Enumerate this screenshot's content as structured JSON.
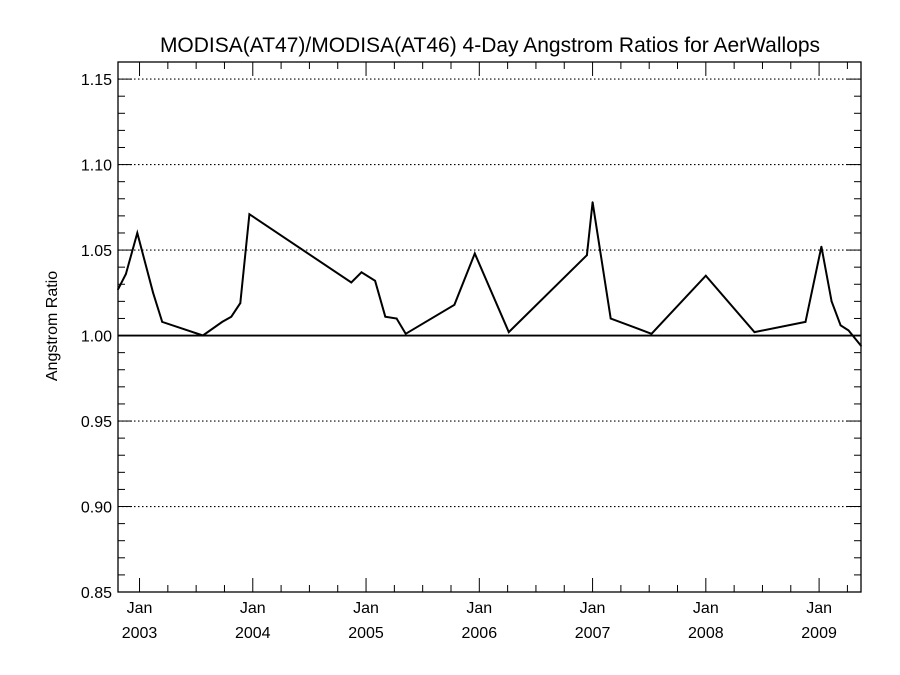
{
  "chart_data": {
    "type": "line",
    "title": "MODISA(AT47)/MODISA(AT46) 4-Day Angstrom Ratios for AerWallops",
    "xlabel": "",
    "ylabel": "Angstrom Ratio",
    "ylim": [
      0.85,
      1.16
    ],
    "yticks": [
      "0.85",
      "0.90",
      "0.95",
      "1.00",
      "1.05",
      "1.10",
      "1.15"
    ],
    "xlim": [
      2002.81,
      2009.37
    ],
    "xticks": [
      {
        "month": "Jan",
        "year": "2003",
        "x": 2003.0
      },
      {
        "month": "Jan",
        "year": "2004",
        "x": 2004.0
      },
      {
        "month": "Jan",
        "year": "2005",
        "x": 2005.0
      },
      {
        "month": "Jan",
        "year": "2006",
        "x": 2006.0
      },
      {
        "month": "Jan",
        "year": "2007",
        "x": 2007.0
      },
      {
        "month": "Jan",
        "year": "2008",
        "x": 2008.0
      },
      {
        "month": "Jan",
        "year": "2009",
        "x": 2009.0
      }
    ],
    "grid": "horizontal dotted",
    "reference_line": 1.0,
    "series": [
      {
        "values": [
          {
            "x": 2002.81,
            "y": 1.027
          },
          {
            "x": 2002.88,
            "y": 1.036
          },
          {
            "x": 2002.98,
            "y": 1.06
          },
          {
            "x": 2003.12,
            "y": 1.025
          },
          {
            "x": 2003.2,
            "y": 1.008
          },
          {
            "x": 2003.56,
            "y": 1.0
          },
          {
            "x": 2003.73,
            "y": 1.008
          },
          {
            "x": 2003.81,
            "y": 1.011
          },
          {
            "x": 2003.89,
            "y": 1.019
          },
          {
            "x": 2003.97,
            "y": 1.071
          },
          {
            "x": 2004.87,
            "y": 1.031
          },
          {
            "x": 2004.96,
            "y": 1.037
          },
          {
            "x": 2005.08,
            "y": 1.032
          },
          {
            "x": 2005.17,
            "y": 1.011
          },
          {
            "x": 2005.27,
            "y": 1.01
          },
          {
            "x": 2005.35,
            "y": 1.001
          },
          {
            "x": 2005.78,
            "y": 1.018
          },
          {
            "x": 2005.96,
            "y": 1.048
          },
          {
            "x": 2006.26,
            "y": 1.002
          },
          {
            "x": 2006.95,
            "y": 1.047
          },
          {
            "x": 2007.0,
            "y": 1.078
          },
          {
            "x": 2007.16,
            "y": 1.01
          },
          {
            "x": 2007.52,
            "y": 1.001
          },
          {
            "x": 2008.0,
            "y": 1.035
          },
          {
            "x": 2008.43,
            "y": 1.002
          },
          {
            "x": 2008.88,
            "y": 1.008
          },
          {
            "x": 2009.02,
            "y": 1.052
          },
          {
            "x": 2009.11,
            "y": 1.02
          },
          {
            "x": 2009.19,
            "y": 1.006
          },
          {
            "x": 2009.26,
            "y": 1.003
          },
          {
            "x": 2009.37,
            "y": 0.994
          }
        ]
      }
    ]
  }
}
